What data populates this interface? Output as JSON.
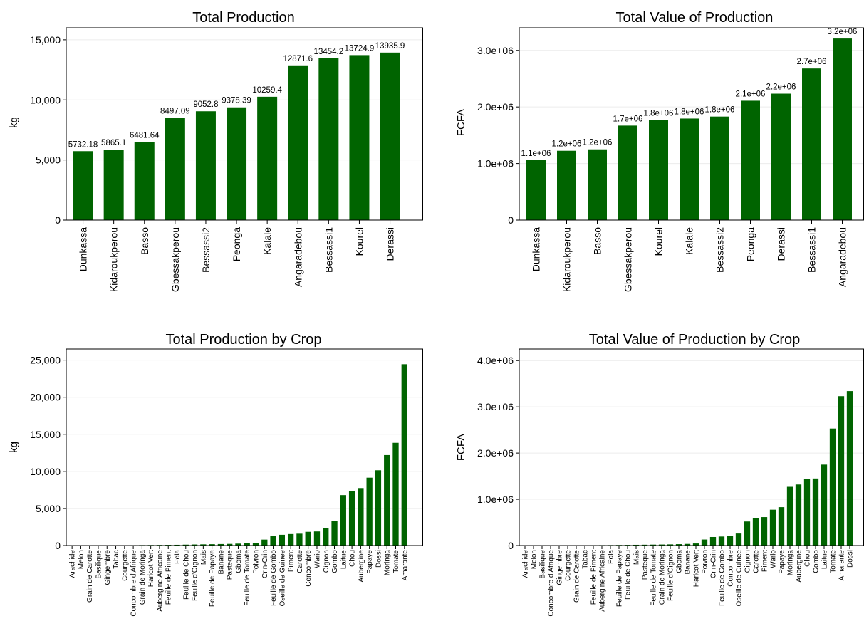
{
  "colors": {
    "bar": "#006400",
    "grid": "#ececec",
    "axis": "#000000"
  },
  "chart_data": [
    {
      "type": "bar",
      "title": "Total Production",
      "xlabel": "",
      "ylabel": "kg",
      "ylim": [
        0,
        16000
      ],
      "yticks": [
        0,
        5000,
        10000,
        15000
      ],
      "ytick_labels": [
        "0",
        "5,000",
        "10,000",
        "15,000"
      ],
      "grid": true,
      "categories": [
        "Dunkassa",
        "Kidaroukperou",
        "Basso",
        "Gbessakperou",
        "Bessassi2",
        "Peonga",
        "Kalale",
        "Angaradebou",
        "Bessassi1",
        "Kourel",
        "Derassi"
      ],
      "values": [
        5732.18,
        5865.1,
        6481.64,
        8497.09,
        9052.8,
        9378.39,
        10259.4,
        12871.6,
        13454.2,
        13724.9,
        13935.9
      ],
      "value_labels": [
        "5732.18",
        "5865.1",
        "6481.64",
        "8497.09",
        "9052.8",
        "9378.39",
        "10259.4",
        "12871.6",
        "13454.2",
        "13724.9",
        "13935.9"
      ]
    },
    {
      "type": "bar",
      "title": "Total Value of Production",
      "xlabel": "",
      "ylabel": "FCFA",
      "ylim": [
        0,
        3400000
      ],
      "yticks": [
        0,
        1000000,
        2000000,
        3000000
      ],
      "ytick_labels": [
        "0",
        "1.0e+06",
        "2.0e+06",
        "3.0e+06"
      ],
      "grid": true,
      "categories": [
        "Dunkassa",
        "Kidaroukperou",
        "Basso",
        "Gbessakperou",
        "Kourel",
        "Kalale",
        "Bessassi2",
        "Peonga",
        "Derassi",
        "Bessassi1",
        "Angaradebou"
      ],
      "values": [
        1060000,
        1225000,
        1250000,
        1670000,
        1770000,
        1795000,
        1830000,
        2110000,
        2235000,
        2680000,
        3210000
      ],
      "value_labels": [
        "1.1e+06",
        "1.2e+06",
        "1.2e+06",
        "1.7e+06",
        "1.8e+06",
        "1.8e+06",
        "1.8e+06",
        "2.1e+06",
        "2.2e+06",
        "2.7e+06",
        "3.2e+06"
      ]
    },
    {
      "type": "bar",
      "title": "Total Production by Crop",
      "xlabel": "",
      "ylabel": "kg",
      "ylim": [
        0,
        26500
      ],
      "yticks": [
        0,
        5000,
        10000,
        15000,
        20000,
        25000
      ],
      "ytick_labels": [
        "0",
        "5,000",
        "10,000",
        "15,000",
        "20,000",
        "25,000"
      ],
      "grid": true,
      "categories": [
        "Arachide",
        "Melon",
        "Grain de Carotte",
        "Basilique",
        "Gingembre",
        "Tabac",
        "Courgette",
        "Concombre d'Afrique",
        "Grain de Moringa",
        "Haricot Vert",
        "Aubergine Africaine",
        "Feuille de Piment",
        "Pola",
        "Feuille de Chou",
        "Feuille d'Oignon",
        "Mais",
        "Feuille de Papaye",
        "Banane",
        "Pasteque",
        "Gboma",
        "Feuille de Tomate",
        "Poivron",
        "Crin-Crin",
        "Feuille de Gombo",
        "Oseille de Guinee",
        "Piment",
        "Carotte",
        "Concombre",
        "Wario",
        "Oignon",
        "Gombo",
        "Laitue",
        "Chou",
        "Aubergine",
        "Papaye",
        "Dossi",
        "Moringa",
        "Tomate",
        "Amarante"
      ],
      "values": [
        0,
        10,
        15,
        20,
        25,
        30,
        40,
        50,
        60,
        70,
        80,
        90,
        100,
        120,
        140,
        160,
        180,
        200,
        220,
        260,
        300,
        350,
        800,
        1250,
        1450,
        1550,
        1600,
        1850,
        1900,
        2350,
        3350,
        6800,
        7350,
        7750,
        9150,
        10150,
        12200,
        13850,
        24450
      ]
    },
    {
      "type": "bar",
      "title": "Total Value of Production by Crop",
      "xlabel": "",
      "ylabel": "FCFA",
      "ylim": [
        0,
        4250000
      ],
      "yticks": [
        0,
        1000000,
        2000000,
        3000000,
        4000000
      ],
      "ytick_labels": [
        "0",
        "1.0e+06",
        "2.0e+06",
        "3.0e+06",
        "4.0e+06"
      ],
      "grid": true,
      "categories": [
        "Arachide",
        "Melon",
        "Basilique",
        "Concombre d'Afrique",
        "Gingembre",
        "Courgette",
        "Grain de Carotte",
        "Tabac",
        "Feuille de Piment",
        "Aubergine Africaine",
        "Pola",
        "Feuille de Papaye",
        "Feuille de Chou",
        "Mais",
        "Pasteque",
        "Feuille de Tomate",
        "Grain de Moringa",
        "Feuille d'Oignon",
        "Gboma",
        "Banane",
        "Haricot Vert",
        "Poivron",
        "Crin-Crin",
        "Feuille de Gombo",
        "Concombre",
        "Oseille de Guinee",
        "Oignon",
        "Carotte",
        "Piment",
        "Wario",
        "Papaye",
        "Moringa",
        "Aubergine",
        "Chou",
        "Gombo",
        "Laitue",
        "Tomate",
        "Amarante",
        "Dossi"
      ],
      "values": [
        0,
        1000,
        2000,
        3000,
        4000,
        5000,
        6000,
        7000,
        8000,
        9000,
        10000,
        12000,
        14000,
        16000,
        18000,
        20000,
        22000,
        25000,
        30000,
        35000,
        45000,
        130000,
        185000,
        195000,
        205000,
        260000,
        520000,
        600000,
        615000,
        775000,
        830000,
        1270000,
        1320000,
        1440000,
        1450000,
        1750000,
        2530000,
        3230000,
        3340000
      ]
    }
  ]
}
